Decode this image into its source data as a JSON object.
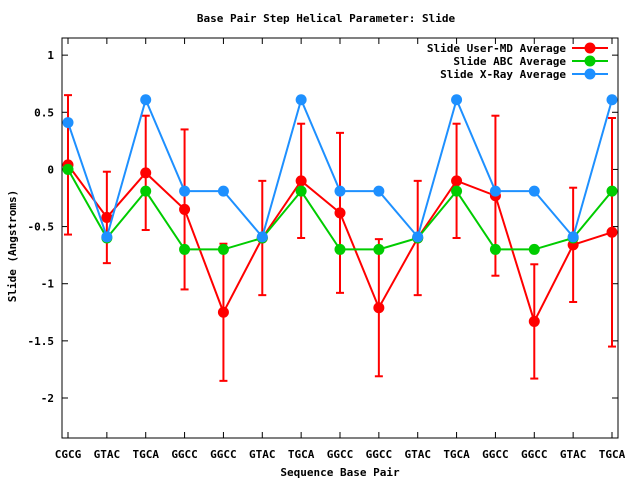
{
  "chart_data": {
    "type": "line",
    "title": "Base Pair Step Helical Parameter: Slide",
    "xlabel": "Sequence Base Pair",
    "ylabel": "Slide (Angstroms)",
    "categories": [
      "CGCG",
      "GTAC",
      "TGCA",
      "GGCC",
      "GGCC",
      "GTAC",
      "TGCA",
      "GGCC",
      "GGCC",
      "GTAC",
      "TGCA",
      "GGCC",
      "GGCC",
      "GTAC",
      "TGCA"
    ],
    "ylim": [
      -2.35,
      1.15
    ],
    "yticks": [
      1,
      0.5,
      0,
      -0.5,
      -1,
      -1.5,
      -2
    ],
    "ytick_labels": [
      "1",
      "0.5",
      "0",
      "-0.5",
      "-1",
      "-1.5",
      "-2"
    ],
    "grid": false,
    "legend_position": "top-right",
    "series": [
      {
        "name": "Slide User-MD Average",
        "color": "#ff0000",
        "values": [
          0.04,
          -0.42,
          -0.03,
          -0.35,
          -1.25,
          -0.6,
          -0.1,
          -0.38,
          -1.21,
          -0.6,
          -0.1,
          -0.23,
          -1.33,
          -0.66,
          -0.55
        ],
        "error_low": [
          -0.57,
          -0.82,
          -0.53,
          -1.05,
          -1.85,
          -1.1,
          -0.6,
          -1.08,
          -1.81,
          -1.1,
          -0.6,
          -0.93,
          -1.83,
          -1.16,
          -1.55
        ],
        "error_high": [
          0.65,
          -0.02,
          0.47,
          0.35,
          -0.65,
          -0.1,
          0.4,
          0.32,
          -0.61,
          -0.1,
          0.4,
          0.47,
          -0.83,
          -0.16,
          0.45
        ]
      },
      {
        "name": "Slide ABC Average",
        "color": "#00cc00",
        "values": [
          0.0,
          -0.6,
          -0.19,
          -0.7,
          -0.7,
          -0.6,
          -0.19,
          -0.7,
          -0.7,
          -0.6,
          -0.19,
          -0.7,
          -0.7,
          -0.6,
          -0.19
        ]
      },
      {
        "name": "Slide X-Ray Average",
        "color": "#1e90ff",
        "values": [
          0.41,
          -0.59,
          0.61,
          -0.19,
          -0.19,
          -0.59,
          0.61,
          -0.19,
          -0.19,
          -0.59,
          0.61,
          -0.19,
          -0.19,
          -0.59,
          0.61
        ]
      }
    ]
  }
}
